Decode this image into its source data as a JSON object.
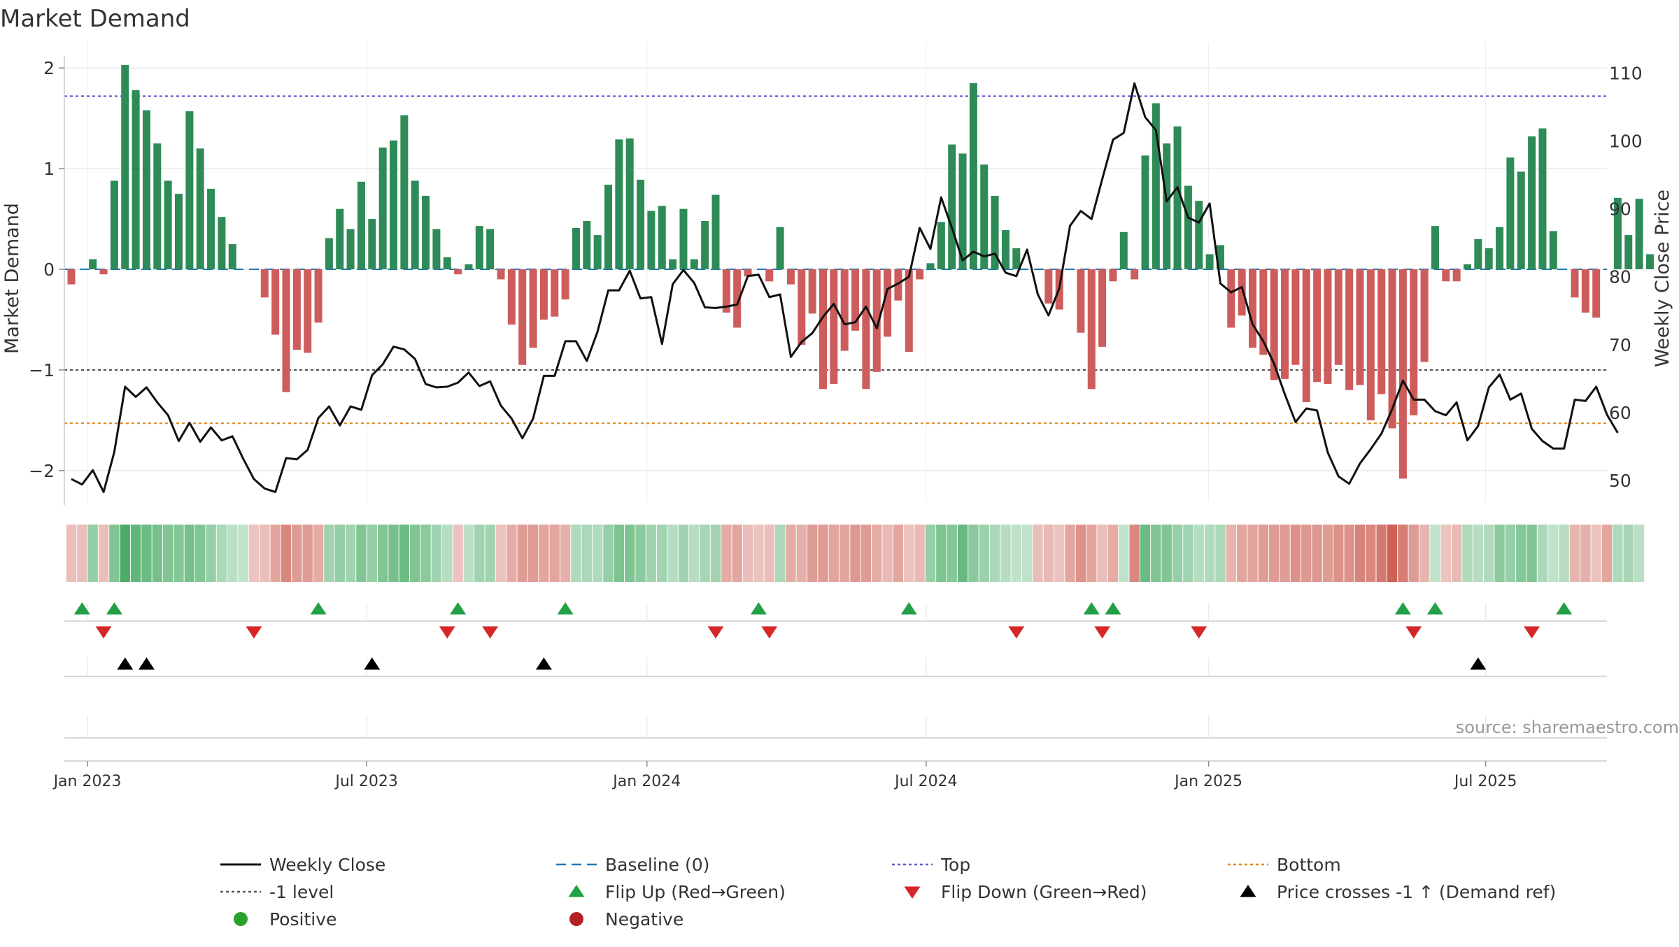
{
  "chart_data": {
    "type": "bar+line",
    "title": "Market Demand",
    "ylabel_left": "Market Demand",
    "ylabel_right": "Weekly Close Price",
    "ylim_left": [
      -2.3,
      2.05
    ],
    "ylim_right": [
      47,
      111.5
    ],
    "yticks_left": [
      {
        "v": 2,
        "label": "2"
      },
      {
        "v": 1,
        "label": "1"
      },
      {
        "v": 0,
        "label": "0"
      },
      {
        "v": -1,
        "label": "−1"
      },
      {
        "v": -2,
        "label": "−2"
      }
    ],
    "yticks_right": [
      {
        "v": 110,
        "label": "110"
      },
      {
        "v": 100,
        "label": "100"
      },
      {
        "v": 90,
        "label": "90"
      },
      {
        "v": 80,
        "label": "80"
      },
      {
        "v": 70,
        "label": "70"
      },
      {
        "v": 60,
        "label": "60"
      },
      {
        "v": 50,
        "label": "50"
      }
    ],
    "week_index_range": [
      0,
      143
    ],
    "xticks": [
      {
        "week": 1.5,
        "label": "Jan 2023"
      },
      {
        "week": 27.5,
        "label": "Jul 2023"
      },
      {
        "week": 53.6,
        "label": "Jan 2024"
      },
      {
        "week": 79.6,
        "label": "Jul 2024"
      },
      {
        "week": 105.9,
        "label": "Jan 2025"
      },
      {
        "week": 131.7,
        "label": "Jul 2025"
      }
    ],
    "reference_lines": {
      "baseline": 0,
      "minus_one": -1,
      "top": 1.72,
      "bottom": -1.53
    },
    "demand": [
      -0.15,
      0,
      0.1,
      -0.05,
      0.88,
      2.03,
      1.78,
      1.58,
      1.25,
      0.88,
      0.75,
      1.57,
      1.2,
      0.8,
      0.52,
      0.25,
      0,
      0,
      -0.28,
      -0.65,
      -1.22,
      -0.8,
      -0.83,
      -0.53,
      0.31,
      0.6,
      0.4,
      0.87,
      0.5,
      1.21,
      1.28,
      1.53,
      0.88,
      0.73,
      0.4,
      0.12,
      -0.05,
      0.05,
      0.43,
      0.4,
      -0.1,
      -0.55,
      -0.95,
      -0.78,
      -0.5,
      -0.47,
      -0.3,
      0.41,
      0.48,
      0.34,
      0.84,
      1.29,
      1.3,
      0.89,
      0.58,
      0.63,
      0.1,
      0.6,
      0.1,
      0.48,
      0.74,
      -0.43,
      -0.58,
      -0.07,
      0.0,
      -0.12,
      0.42,
      -0.15,
      -0.75,
      -0.44,
      -1.19,
      -1.14,
      -0.81,
      -0.61,
      -1.19,
      -1.02,
      -0.67,
      -0.31,
      -0.82,
      -0.1,
      0.06,
      0.47,
      1.24,
      1.15,
      1.85,
      1.04,
      0.73,
      0.39,
      0.21,
      0,
      0,
      -0.34,
      -0.4,
      0,
      -0.63,
      -1.19,
      -0.77,
      -0.12,
      0.37,
      -0.1,
      1.13,
      1.65,
      1.25,
      1.42,
      0.83,
      0.68,
      0.15,
      0.24,
      -0.58,
      -0.46,
      -0.78,
      -0.85,
      -1.1,
      -1.09,
      -0.95,
      -1.32,
      -1.12,
      -1.14,
      -0.95,
      -1.2,
      -1.15,
      -1.5,
      -1.24,
      -1.58,
      -2.08,
      -1.45,
      -0.92,
      0.43,
      -0.12,
      -0.12,
      0.05,
      0.3,
      0.21,
      0.42,
      1.11,
      0.97,
      1.32,
      1.4,
      0.38,
      0,
      -0.28,
      -0.43,
      -0.48,
      0,
      0.71,
      0.34,
      0.7,
      0.15
    ],
    "weekly_close": [
      50.2,
      49.4,
      51.5,
      48.3,
      54.2,
      63.8,
      62.3,
      63.7,
      61.5,
      59.6,
      55.8,
      58.5,
      55.7,
      57.8,
      55.9,
      56.5,
      53.2,
      50.2,
      48.8,
      48.3,
      53.3,
      53.1,
      54.5,
      59.2,
      60.9,
      58.1,
      60.9,
      60.4,
      65.5,
      67.1,
      69.7,
      69.3,
      67.9,
      64.2,
      63.7,
      63.8,
      64.4,
      65.9,
      63.9,
      64.6,
      61.0,
      59.1,
      56.2,
      59.1,
      65.4,
      65.4,
      70.5,
      70.5,
      67.6,
      71.9,
      78.0,
      78.0,
      80.9,
      76.8,
      77.0,
      70.1,
      78.9,
      81.0,
      79.1,
      75.5,
      75.4,
      75.6,
      75.9,
      80.1,
      80.3,
      77.0,
      77.4,
      68.2,
      70.4,
      71.7,
      74.1,
      76.0,
      73.0,
      73.3,
      75.6,
      72.4,
      78.2,
      79.0,
      80.0,
      87.2,
      84.1,
      91.7,
      87.2,
      82.4,
      83.7,
      83.0,
      83.4,
      80.6,
      80.1,
      84.0,
      77.4,
      74.3,
      78.3,
      87.5,
      89.7,
      88.5,
      94.4,
      100.2,
      101.2,
      108.5,
      103.5,
      101.6,
      91.1,
      93.2,
      88.7,
      88.0,
      90.8,
      79.0,
      77.7,
      78.5,
      73.0,
      70.5,
      67.2,
      62.7,
      58.6,
      60.6,
      60.3,
      54.1,
      50.6,
      49.5,
      52.5,
      54.6,
      56.9,
      60.5,
      64.7,
      61.9,
      61.9,
      60.2,
      59.6,
      61.5,
      55.9,
      58.0,
      63.7,
      65.6,
      61.9,
      62.8,
      57.6,
      55.8,
      54.7,
      54.7,
      61.9,
      61.7,
      63.8,
      59.7,
      57.0
    ],
    "strip_opacity": [
      0.33,
      0.33,
      0.5,
      0.33,
      0.6,
      0.85,
      0.75,
      0.7,
      0.65,
      0.6,
      0.58,
      0.65,
      0.6,
      0.5,
      0.4,
      0.33,
      0.3,
      0.3,
      0.33,
      0.45,
      0.6,
      0.5,
      0.5,
      0.42,
      0.45,
      0.5,
      0.45,
      0.6,
      0.5,
      0.6,
      0.65,
      0.7,
      0.6,
      0.55,
      0.45,
      0.35,
      0.3,
      0.33,
      0.45,
      0.45,
      0.3,
      0.42,
      0.5,
      0.5,
      0.45,
      0.45,
      0.4,
      0.38,
      0.4,
      0.38,
      0.5,
      0.62,
      0.62,
      0.55,
      0.45,
      0.45,
      0.35,
      0.45,
      0.35,
      0.42,
      0.45,
      0.42,
      0.45,
      0.33,
      0.3,
      0.33,
      0.4,
      0.42,
      0.4,
      0.5,
      0.5,
      0.45,
      0.45,
      0.52,
      0.5,
      0.42,
      0.35,
      0.45,
      0.3,
      0.35,
      0.5,
      0.62,
      0.58,
      0.72,
      0.55,
      0.48,
      0.4,
      0.35,
      0.3,
      0.3,
      0.33,
      0.35,
      0.3,
      0.45,
      0.55,
      0.45,
      0.33,
      0.42,
      0.3,
      0.6,
      0.7,
      0.6,
      0.6,
      0.5,
      0.45,
      0.35,
      0.38,
      0.4,
      0.38,
      0.45,
      0.45,
      0.5,
      0.5,
      0.5,
      0.55,
      0.52,
      0.52,
      0.5,
      0.55,
      0.55,
      0.62,
      0.6,
      0.68,
      0.8,
      0.65,
      0.5,
      0.38,
      0.3,
      0.3,
      0.35,
      0.38,
      0.35,
      0.38,
      0.55,
      0.5,
      0.58,
      0.6,
      0.4,
      0.3,
      0.35,
      0.38,
      0.4,
      0.3,
      0.45,
      0.38,
      0.42,
      0.33
    ],
    "flip_up_weeks": [
      1,
      4,
      23,
      36,
      46,
      64,
      78,
      95,
      97,
      124,
      127,
      139
    ],
    "flip_down_weeks": [
      3,
      17,
      35,
      39,
      60,
      65,
      88,
      96,
      105,
      125,
      136
    ],
    "price_cross_weeks": [
      5,
      7,
      28,
      44,
      131
    ],
    "source_note": "source: sharemaestro.com",
    "legend": [
      {
        "label": "Weekly Close",
        "kind": "line",
        "color": "#111111"
      },
      {
        "label": "Baseline (0)",
        "kind": "dash",
        "color": "#1f77b4"
      },
      {
        "label": "Top",
        "kind": "dot",
        "color": "#5b5bd6"
      },
      {
        "label": "Bottom",
        "kind": "dot",
        "color": "#e08a1e"
      },
      {
        "label": "-1 level",
        "kind": "dot",
        "color": "#555555"
      },
      {
        "label": "Flip Up (Red→Green)",
        "kind": "tri-up",
        "color": "#22a045"
      },
      {
        "label": "Flip Down (Green→Red)",
        "kind": "tri-down",
        "color": "#d62728"
      },
      {
        "label": "Price crosses -1 ↑ (Demand ref)",
        "kind": "tri-up",
        "color": "#000000"
      },
      {
        "label": "Positive",
        "kind": "dot-marker",
        "color": "#2ca02c"
      },
      {
        "label": "Negative",
        "kind": "dot-marker",
        "color": "#b22222"
      }
    ]
  },
  "colors": {
    "positive_bar": "#2e8b57",
    "negative_bar": "#cd5c5c",
    "strip_green": "#2e9e4f",
    "strip_red": "#c0392b",
    "line": "#111111",
    "axis_text": "#333333"
  }
}
